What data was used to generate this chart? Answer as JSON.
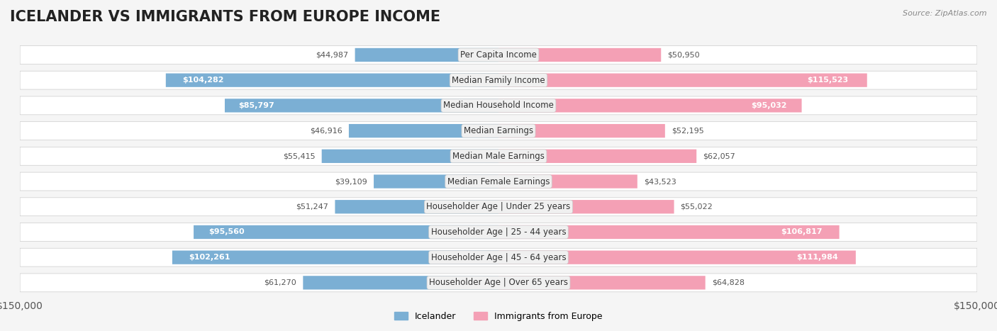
{
  "title": "ICELANDER VS IMMIGRANTS FROM EUROPE INCOME",
  "source": "Source: ZipAtlas.com",
  "categories": [
    "Per Capita Income",
    "Median Family Income",
    "Median Household Income",
    "Median Earnings",
    "Median Male Earnings",
    "Median Female Earnings",
    "Householder Age | Under 25 years",
    "Householder Age | 25 - 44 years",
    "Householder Age | 45 - 64 years",
    "Householder Age | Over 65 years"
  ],
  "icelander_values": [
    44987,
    104282,
    85797,
    46916,
    55415,
    39109,
    51247,
    95560,
    102261,
    61270
  ],
  "immigrant_values": [
    50950,
    115523,
    95032,
    52195,
    62057,
    43523,
    55022,
    106817,
    111984,
    64828
  ],
  "icelander_color": "#7bafd4",
  "icelander_dark_color": "#5b8fbf",
  "immigrant_color": "#f4a0b5",
  "immigrant_dark_color": "#e87090",
  "icelander_label": "Icelander",
  "immigrant_label": "Immigrants from Europe",
  "x_max": 150000,
  "background_color": "#f5f5f5",
  "row_bg_color": "#ffffff",
  "label_box_color": "#f0f0f0",
  "title_fontsize": 15,
  "axis_fontsize": 10,
  "label_fontsize": 8.5,
  "value_fontsize": 8.0
}
